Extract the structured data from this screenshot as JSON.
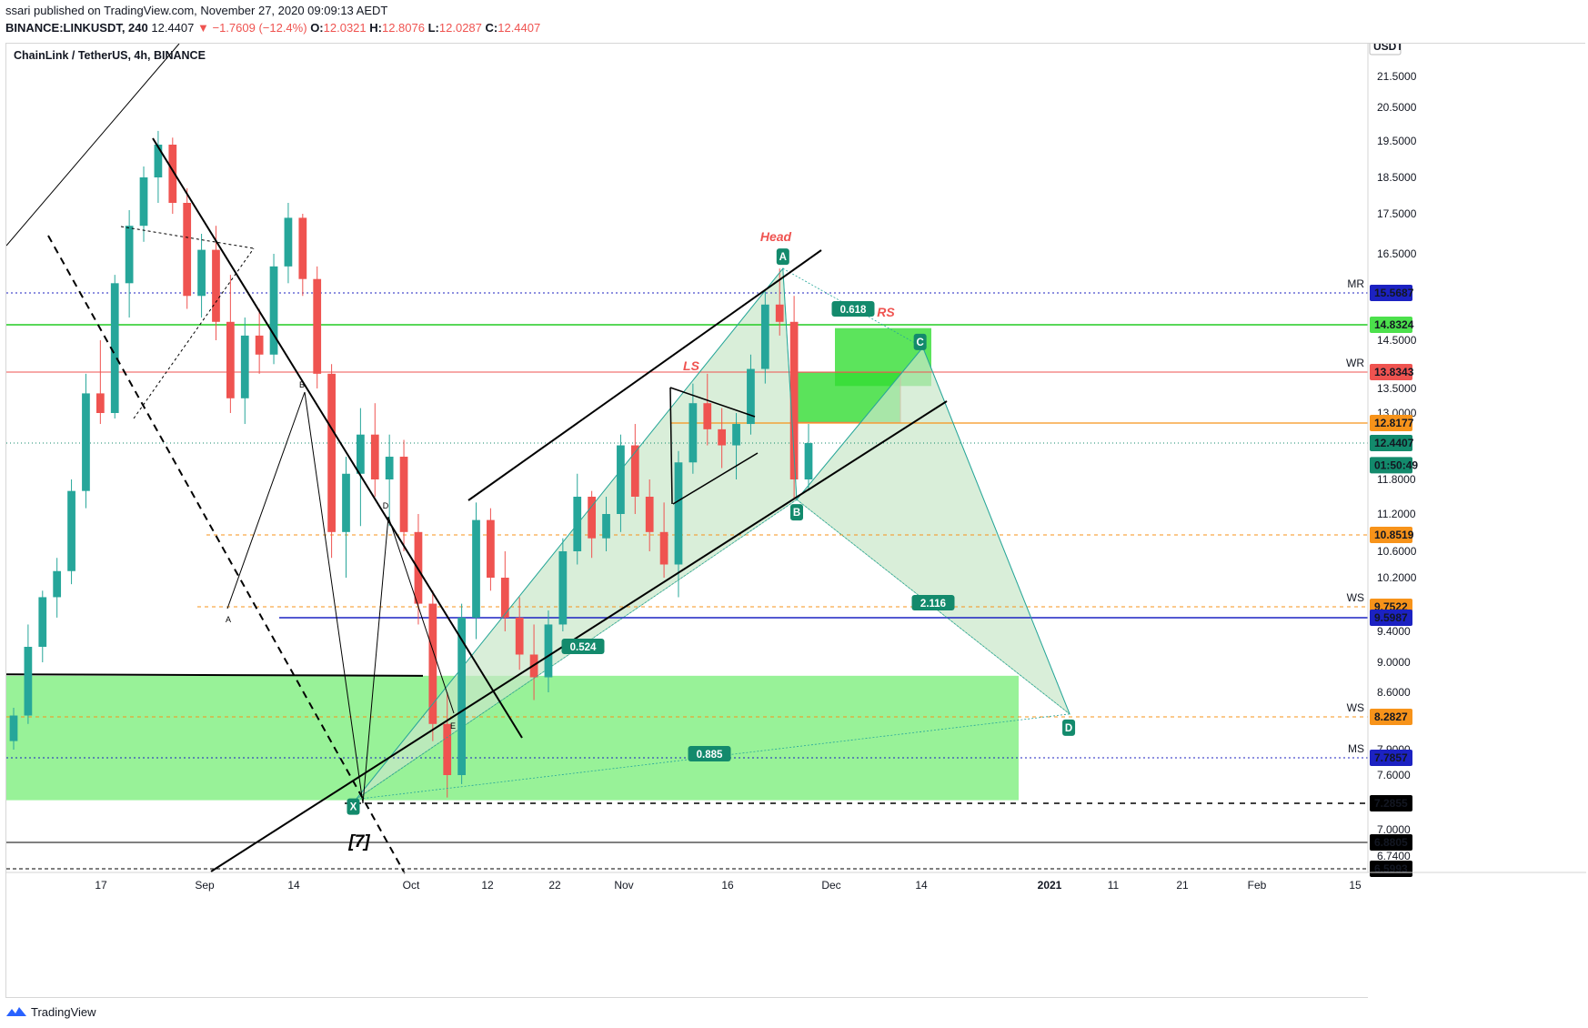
{
  "header": {
    "published": "ssari published on TradingView.com, November 27, 2020 09:09:13 AEDT",
    "symbol": "BINANCE:LINKUSDT, 240",
    "last": "12.4407",
    "change": "▼ −1.7609 (−12.4%)",
    "o_label": "O:",
    "o_value": "12.0321",
    "h_label": "H:",
    "h_value": "12.8076",
    "l_label": "L:",
    "l_value": "12.0287",
    "c_label": "C:",
    "c_value": "12.4407"
  },
  "chart_title": "ChainLink / TetherUS, 4h, BINANCE",
  "footer": {
    "brand": "TradingView"
  },
  "colors": {
    "up": "#26a69a",
    "down": "#ef5350",
    "green_zone": "#76ee76",
    "triangle": "#c9e8c9",
    "accent_teal": "#138a6c",
    "orange": "#f7931a",
    "blue": "#1c22c2",
    "red_line": "#ef5350"
  },
  "chart_data": {
    "type": "candlestick",
    "currency": "USDT",
    "x_ticks": [
      "17",
      "Sep",
      "14",
      "Oct",
      "12",
      "22",
      "Nov",
      "16",
      "Dec",
      "14",
      "2021",
      "11",
      "21",
      "Feb",
      "15"
    ],
    "y_ticks": [
      "21.5000",
      "20.5000",
      "19.5000",
      "18.5000",
      "17.5000",
      "16.5000",
      "14.5000",
      "13.5000",
      "13.0000",
      "11.8000",
      "11.2000",
      "10.6000",
      "10.2000",
      "9.4000",
      "9.0000",
      "8.6000",
      "7.9000",
      "7.6000",
      "7.0000",
      "6.7400"
    ],
    "price_badges": [
      {
        "label": "USDT",
        "value": 22.0,
        "bg": "#ffffff",
        "fg": "#131722"
      },
      {
        "label": "15.5687",
        "value": 15.5687,
        "bg": "#1c22c2",
        "fg": "#ffffff",
        "tag": "MR",
        "tag_color": "#2196f3"
      },
      {
        "label": "14.8324",
        "value": 14.8324,
        "bg": "#4ce04c",
        "fg": "#131722"
      },
      {
        "label": "13.8343",
        "value": 13.8343,
        "bg": "#ef5350",
        "fg": "#ffffff",
        "tag": "WR",
        "tag_color": "#ef5350"
      },
      {
        "label": "12.8177",
        "value": 12.8177,
        "bg": "#f7931a",
        "fg": "#131722"
      },
      {
        "label": "12.4407",
        "value": 12.4407,
        "bg": "#138a6c",
        "fg": "#ffffff"
      },
      {
        "label": "01:50:49",
        "value": 12.05,
        "bg": "#138a6c",
        "fg": "#ffffff"
      },
      {
        "label": "10.8519",
        "value": 10.8519,
        "bg": "#f7931a",
        "fg": "#131722"
      },
      {
        "label": "9.7522",
        "value": 9.7522,
        "bg": "#f7931a",
        "fg": "#131722",
        "tag": "WS",
        "tag_color": "#f7931a"
      },
      {
        "label": "9.5987",
        "value": 9.5987,
        "bg": "#1c22c2",
        "fg": "#ffffff"
      },
      {
        "label": "8.2827",
        "value": 8.2827,
        "bg": "#f7931a",
        "fg": "#131722",
        "tag": "WS",
        "tag_color": "#f7931a"
      },
      {
        "label": "7.7857",
        "value": 7.7857,
        "bg": "#1c22c2",
        "fg": "#ffffff",
        "tag": "MS",
        "tag_color": "#2196f3"
      },
      {
        "label": "7.2855",
        "value": 7.2855,
        "bg": "#000000",
        "fg": "#ffffff"
      },
      {
        "label": "6.8805",
        "value": 6.8805,
        "bg": "#000000",
        "fg": "#ffffff"
      },
      {
        "label": "6.5993",
        "value": 6.5993,
        "bg": "#000000",
        "fg": "#ffffff"
      }
    ],
    "pattern_points": [
      {
        "label": "X",
        "date": "2020-09-23",
        "value": 7.33
      },
      {
        "label": "A",
        "date": "2020-11-24",
        "value": 16.15
      },
      {
        "label": "B",
        "date": "2020-11-26",
        "value": 11.45
      },
      {
        "label": "C",
        "date": "2020-12-14",
        "value": 14.35
      },
      {
        "label": "D",
        "date": "2021-01-04",
        "value": 8.32
      }
    ],
    "ratios": [
      "0.618",
      "0.524",
      "2.116",
      "0.885"
    ],
    "annotations": [
      "Head",
      "LS",
      "RS",
      "[7]",
      "A",
      "B",
      "D",
      "E"
    ],
    "candles_ohlc": [
      [
        8.0,
        8.4,
        7.9,
        8.3
      ],
      [
        8.3,
        9.5,
        8.2,
        9.2
      ],
      [
        9.2,
        10.0,
        9.0,
        9.9
      ],
      [
        9.9,
        10.5,
        9.6,
        10.3
      ],
      [
        10.3,
        11.8,
        10.1,
        11.6
      ],
      [
        11.6,
        13.8,
        11.3,
        13.4
      ],
      [
        13.4,
        14.5,
        12.8,
        13.0
      ],
      [
        13.0,
        16.0,
        12.9,
        15.8
      ],
      [
        15.8,
        17.6,
        15.0,
        17.2
      ],
      [
        17.2,
        18.8,
        16.8,
        18.5
      ],
      [
        18.5,
        19.8,
        17.8,
        19.4
      ],
      [
        19.4,
        19.6,
        17.5,
        17.8
      ],
      [
        17.8,
        18.2,
        15.2,
        15.5
      ],
      [
        15.5,
        17.0,
        15.0,
        16.6
      ],
      [
        16.6,
        17.2,
        14.5,
        14.9
      ],
      [
        14.9,
        16.0,
        13.0,
        13.3
      ],
      [
        13.3,
        15.0,
        12.8,
        14.6
      ],
      [
        14.6,
        15.2,
        13.8,
        14.2
      ],
      [
        14.2,
        16.5,
        14.0,
        16.2
      ],
      [
        16.2,
        17.8,
        15.8,
        17.4
      ],
      [
        17.4,
        17.5,
        15.5,
        15.9
      ],
      [
        15.9,
        16.2,
        13.5,
        13.8
      ],
      [
        13.8,
        14.0,
        10.5,
        10.9
      ],
      [
        10.9,
        12.2,
        10.2,
        11.9
      ],
      [
        11.9,
        13.1,
        11.0,
        12.6
      ],
      [
        12.6,
        13.2,
        11.5,
        11.8
      ],
      [
        11.8,
        12.6,
        11.0,
        12.2
      ],
      [
        12.2,
        12.5,
        10.6,
        10.9
      ],
      [
        10.9,
        11.2,
        9.5,
        9.8
      ],
      [
        9.8,
        10.0,
        8.0,
        8.2
      ],
      [
        8.2,
        8.6,
        7.35,
        7.6
      ],
      [
        7.6,
        9.8,
        7.5,
        9.6
      ],
      [
        9.6,
        11.4,
        9.3,
        11.1
      ],
      [
        11.1,
        11.3,
        10.0,
        10.2
      ],
      [
        10.2,
        10.6,
        9.4,
        9.6
      ],
      [
        9.6,
        9.9,
        8.9,
        9.1
      ],
      [
        9.1,
        9.5,
        8.5,
        8.8
      ],
      [
        8.8,
        9.7,
        8.6,
        9.5
      ],
      [
        9.5,
        10.8,
        9.4,
        10.6
      ],
      [
        10.6,
        11.9,
        10.4,
        11.5
      ],
      [
        11.5,
        11.6,
        10.5,
        10.8
      ],
      [
        10.8,
        11.5,
        10.6,
        11.2
      ],
      [
        11.2,
        12.6,
        10.9,
        12.4
      ],
      [
        12.4,
        12.8,
        11.2,
        11.5
      ],
      [
        11.5,
        11.8,
        10.6,
        10.9
      ],
      [
        10.9,
        11.4,
        10.2,
        10.4
      ],
      [
        10.4,
        12.3,
        9.9,
        12.1
      ],
      [
        12.1,
        13.6,
        11.9,
        13.2
      ],
      [
        13.2,
        13.8,
        12.4,
        12.7
      ],
      [
        12.7,
        13.1,
        12.0,
        12.4
      ],
      [
        12.4,
        13.0,
        11.8,
        12.8
      ],
      [
        12.8,
        14.2,
        12.6,
        13.9
      ],
      [
        13.9,
        15.6,
        13.6,
        15.3
      ],
      [
        15.3,
        16.15,
        14.6,
        14.9
      ],
      [
        14.9,
        15.5,
        11.45,
        11.8
      ],
      [
        11.8,
        12.8,
        11.6,
        12.44
      ]
    ]
  }
}
